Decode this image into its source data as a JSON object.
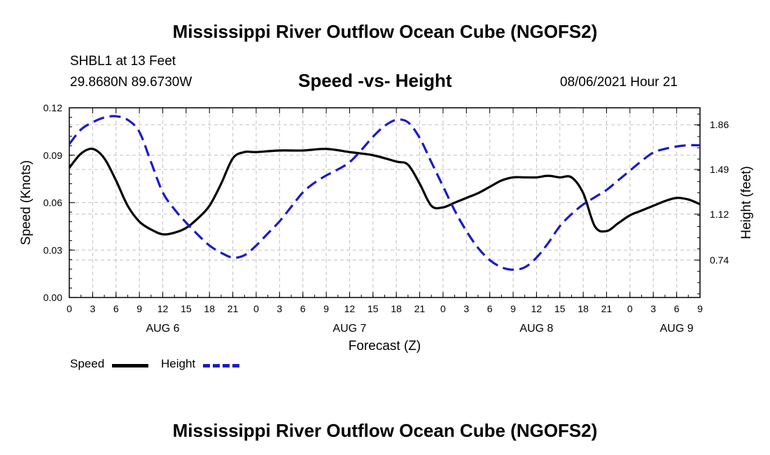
{
  "header": {
    "title_top": "Mississippi River Outflow Ocean Cube (NGOFS2)",
    "title_bottom": "Mississippi River Outflow Ocean Cube (NGOFS2)",
    "station": "SHBL1 at 13 Feet",
    "coords": "29.8680N  89.6730W",
    "chart_title": "Speed -vs- Height",
    "timestamp": "08/06/2021 Hour 21"
  },
  "legend": {
    "speed_label": "Speed",
    "height_label": "Height"
  },
  "colors": {
    "speed": "#000000",
    "height": "#1a1acc",
    "grid": "#c0c0c0"
  },
  "chart_data": {
    "type": "line",
    "title": "Speed -vs- Height",
    "xlabel": "Forecast (Z)",
    "ylabel": "Speed (Knots)",
    "y2label": "Height (feet)",
    "xlim": [
      0,
      81
    ],
    "ylim": [
      0,
      0.12
    ],
    "y2lim": [
      0.43,
      2.0
    ],
    "grid": true,
    "x_ticks": [
      0,
      3,
      6,
      9,
      12,
      15,
      18,
      21,
      24,
      27,
      30,
      33,
      36,
      39,
      42,
      45,
      48,
      51,
      54,
      57,
      60,
      63,
      66,
      69,
      72,
      75,
      78,
      81
    ],
    "x_tick_labels": [
      "0",
      "3",
      "6",
      "9",
      "12",
      "15",
      "18",
      "21",
      "0",
      "3",
      "6",
      "9",
      "12",
      "15",
      "18",
      "21",
      "0",
      "3",
      "6",
      "9",
      "12",
      "15",
      "18",
      "21",
      "0",
      "3",
      "6",
      "9"
    ],
    "date_labels": [
      {
        "x": 12,
        "label": "AUG 6"
      },
      {
        "x": 36,
        "label": "AUG 7"
      },
      {
        "x": 60,
        "label": "AUG 8"
      },
      {
        "x": 78,
        "label": "AUG 9"
      }
    ],
    "y_ticks": [
      0,
      0.03,
      0.06,
      0.09,
      0.12
    ],
    "y_tick_labels": [
      "0.00",
      "0.03",
      "0.06",
      "0.09",
      "0.12"
    ],
    "y2_ticks": [
      0.74,
      1.12,
      1.49,
      1.86
    ],
    "y2_tick_labels": [
      "0.74",
      "1.12",
      "1.49",
      "1.86"
    ],
    "series": [
      {
        "name": "Speed",
        "axis": "left",
        "x": [
          0,
          1.5,
          3,
          4.5,
          6,
          7.5,
          9,
          10.5,
          12,
          13.5,
          15,
          16.5,
          18,
          19.5,
          21,
          22.5,
          24,
          27,
          30,
          33,
          36,
          39,
          42,
          43.5,
          45,
          46.5,
          48,
          49.5,
          51,
          52.5,
          54,
          55.5,
          57,
          58.5,
          60,
          61.5,
          63,
          64.5,
          66,
          67.5,
          69,
          70.5,
          72,
          73.5,
          75,
          76.5,
          78,
          79.5,
          81
        ],
        "values": [
          0.082,
          0.091,
          0.094,
          0.088,
          0.074,
          0.058,
          0.048,
          0.043,
          0.04,
          0.041,
          0.044,
          0.05,
          0.058,
          0.072,
          0.088,
          0.092,
          0.092,
          0.093,
          0.093,
          0.094,
          0.092,
          0.09,
          0.086,
          0.084,
          0.072,
          0.058,
          0.057,
          0.06,
          0.063,
          0.066,
          0.07,
          0.074,
          0.076,
          0.076,
          0.076,
          0.077,
          0.076,
          0.076,
          0.066,
          0.045,
          0.042,
          0.047,
          0.052,
          0.055,
          0.058,
          0.061,
          0.063,
          0.062,
          0.059
        ]
      },
      {
        "name": "Height",
        "axis": "right",
        "x": [
          0,
          1.5,
          3,
          4.5,
          6,
          7.5,
          9,
          10.5,
          12,
          13.5,
          15,
          16.5,
          18,
          19.5,
          21,
          22.5,
          24,
          25.5,
          27,
          28.5,
          30,
          31.5,
          33,
          34.5,
          36,
          37.5,
          39,
          40.5,
          42,
          43.5,
          45,
          46.5,
          48,
          49.5,
          51,
          52.5,
          54,
          55.5,
          57,
          58.5,
          60,
          61.5,
          63,
          64.5,
          66,
          67.5,
          69,
          70.5,
          72,
          73.5,
          75,
          76.5,
          78,
          79.5,
          81
        ],
        "values": [
          1.7,
          1.82,
          1.88,
          1.92,
          1.93,
          1.9,
          1.8,
          1.55,
          1.3,
          1.16,
          1.05,
          0.95,
          0.86,
          0.8,
          0.76,
          0.78,
          0.86,
          0.96,
          1.06,
          1.18,
          1.3,
          1.38,
          1.44,
          1.49,
          1.55,
          1.65,
          1.76,
          1.85,
          1.9,
          1.88,
          1.75,
          1.55,
          1.35,
          1.15,
          0.98,
          0.84,
          0.74,
          0.68,
          0.66,
          0.68,
          0.76,
          0.88,
          1.02,
          1.12,
          1.2,
          1.26,
          1.32,
          1.4,
          1.48,
          1.56,
          1.63,
          1.66,
          1.68,
          1.69,
          1.69
        ]
      }
    ]
  }
}
